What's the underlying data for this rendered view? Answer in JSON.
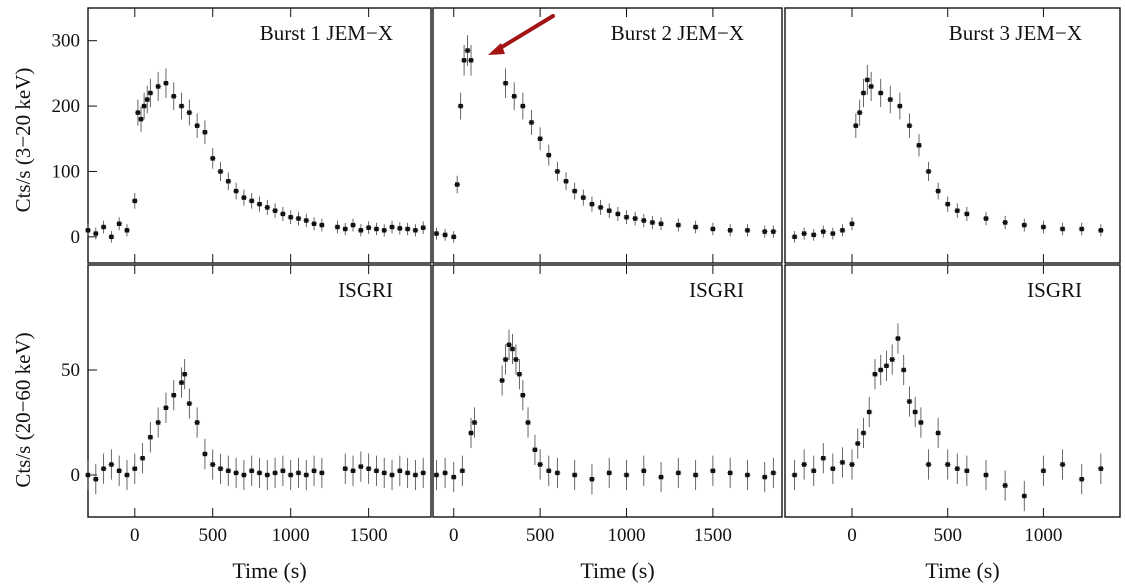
{
  "chart_data": [
    {
      "type": "scatter",
      "panel": "burst1-jemx",
      "label": "Burst 1  JEM−X",
      "ylabel": "Cts/s (3−20 keV)",
      "xlabel": "",
      "xlim": [
        -300,
        1900
      ],
      "ylim": [
        -40,
        350
      ],
      "xticks": [
        0,
        500,
        1000,
        1500
      ],
      "yticks": [
        0,
        100,
        200,
        300
      ],
      "x": [
        -300,
        -250,
        -200,
        -150,
        -100,
        -50,
        0,
        20,
        40,
        60,
        80,
        100,
        150,
        200,
        250,
        300,
        350,
        400,
        450,
        500,
        550,
        600,
        650,
        700,
        750,
        800,
        850,
        900,
        950,
        1000,
        1050,
        1100,
        1150,
        1200,
        1300,
        1350,
        1400,
        1450,
        1500,
        1550,
        1600,
        1650,
        1700,
        1750,
        1800,
        1850
      ],
      "y": [
        10,
        5,
        15,
        0,
        20,
        10,
        55,
        190,
        180,
        200,
        210,
        220,
        230,
        235,
        215,
        200,
        190,
        170,
        160,
        120,
        100,
        85,
        70,
        60,
        55,
        50,
        45,
        40,
        35,
        30,
        28,
        25,
        20,
        18,
        15,
        12,
        18,
        10,
        14,
        12,
        10,
        15,
        13,
        12,
        10,
        14
      ]
    },
    {
      "type": "scatter",
      "panel": "burst2-jemx",
      "label": "Burst 2  JEM−X",
      "xlabel": "",
      "xlim": [
        -120,
        1900
      ],
      "ylim": [
        -40,
        350
      ],
      "xticks": [
        0,
        500,
        1000,
        1500
      ],
      "x": [
        -100,
        -50,
        0,
        20,
        40,
        60,
        80,
        100,
        300,
        350,
        400,
        450,
        500,
        550,
        600,
        650,
        700,
        750,
        800,
        850,
        900,
        950,
        1000,
        1050,
        1100,
        1150,
        1200,
        1300,
        1400,
        1500,
        1600,
        1700,
        1800,
        1850
      ],
      "y": [
        5,
        3,
        0,
        80,
        200,
        270,
        285,
        270,
        235,
        215,
        200,
        175,
        150,
        125,
        100,
        85,
        70,
        60,
        50,
        45,
        40,
        35,
        30,
        28,
        25,
        22,
        20,
        18,
        15,
        12,
        10,
        10,
        8,
        8
      ]
    },
    {
      "type": "scatter",
      "panel": "burst3-jemx",
      "label": "Burst 3  JEM−X",
      "xlabel": "",
      "xlim": [
        -350,
        1400
      ],
      "ylim": [
        -40,
        350
      ],
      "xticks": [
        0,
        500,
        1000
      ],
      "x": [
        -300,
        -250,
        -200,
        -150,
        -100,
        -50,
        0,
        20,
        40,
        60,
        80,
        100,
        150,
        200,
        250,
        300,
        350,
        400,
        450,
        500,
        550,
        600,
        700,
        800,
        900,
        1000,
        1100,
        1200,
        1300
      ],
      "y": [
        0,
        5,
        3,
        8,
        5,
        10,
        20,
        170,
        190,
        220,
        240,
        230,
        220,
        210,
        200,
        170,
        140,
        100,
        70,
        50,
        40,
        35,
        28,
        22,
        18,
        15,
        12,
        12,
        10
      ]
    },
    {
      "type": "scatter",
      "panel": "burst1-isgri",
      "label": "ISGRI",
      "ylabel": "Cts/s (20−60 keV)",
      "xlabel": "Time (s)",
      "xlim": [
        -300,
        1900
      ],
      "ylim": [
        -20,
        100
      ],
      "xticks": [
        0,
        500,
        1000,
        1500
      ],
      "yticks": [
        0,
        50
      ],
      "x": [
        -300,
        -250,
        -200,
        -150,
        -100,
        -50,
        0,
        50,
        100,
        150,
        200,
        250,
        300,
        320,
        350,
        400,
        450,
        500,
        550,
        600,
        650,
        700,
        750,
        800,
        850,
        900,
        950,
        1000,
        1050,
        1100,
        1150,
        1200,
        1350,
        1400,
        1450,
        1500,
        1550,
        1600,
        1650,
        1700,
        1750,
        1800,
        1850
      ],
      "y": [
        0,
        -2,
        3,
        5,
        2,
        0,
        3,
        8,
        18,
        25,
        32,
        38,
        44,
        48,
        34,
        25,
        10,
        5,
        3,
        2,
        1,
        0,
        2,
        1,
        0,
        1,
        2,
        0,
        1,
        0,
        2,
        1,
        3,
        2,
        4,
        3,
        2,
        1,
        0,
        2,
        1,
        0,
        1
      ]
    },
    {
      "type": "scatter",
      "panel": "burst2-isgri",
      "label": "ISGRI",
      "xlabel": "Time (s)",
      "xlim": [
        -120,
        1900
      ],
      "ylim": [
        -20,
        100
      ],
      "xticks": [
        0,
        500,
        1000,
        1500
      ],
      "x": [
        -100,
        -50,
        0,
        50,
        100,
        120,
        280,
        300,
        320,
        340,
        360,
        380,
        400,
        430,
        470,
        500,
        550,
        600,
        700,
        800,
        900,
        1000,
        1100,
        1200,
        1300,
        1400,
        1500,
        1600,
        1700,
        1800,
        1850
      ],
      "y": [
        0,
        1,
        -1,
        2,
        20,
        25,
        45,
        55,
        62,
        60,
        55,
        48,
        38,
        25,
        12,
        5,
        2,
        1,
        0,
        -2,
        1,
        0,
        2,
        -1,
        1,
        0,
        2,
        1,
        0,
        -1,
        1
      ]
    },
    {
      "type": "scatter",
      "panel": "burst3-isgri",
      "label": "ISGRI",
      "xlabel": "Time (s)",
      "xlim": [
        -350,
        1400
      ],
      "ylim": [
        -20,
        100
      ],
      "xticks": [
        0,
        500,
        1000
      ],
      "x": [
        -300,
        -250,
        -200,
        -150,
        -100,
        -50,
        0,
        30,
        60,
        90,
        120,
        150,
        180,
        210,
        240,
        270,
        300,
        330,
        360,
        400,
        450,
        500,
        550,
        600,
        700,
        800,
        900,
        1000,
        1100,
        1200,
        1300
      ],
      "y": [
        0,
        5,
        2,
        8,
        3,
        6,
        5,
        15,
        20,
        30,
        48,
        50,
        52,
        55,
        65,
        50,
        35,
        30,
        25,
        5,
        20,
        5,
        3,
        2,
        0,
        -5,
        -10,
        2,
        5,
        -2,
        3
      ]
    }
  ]
}
